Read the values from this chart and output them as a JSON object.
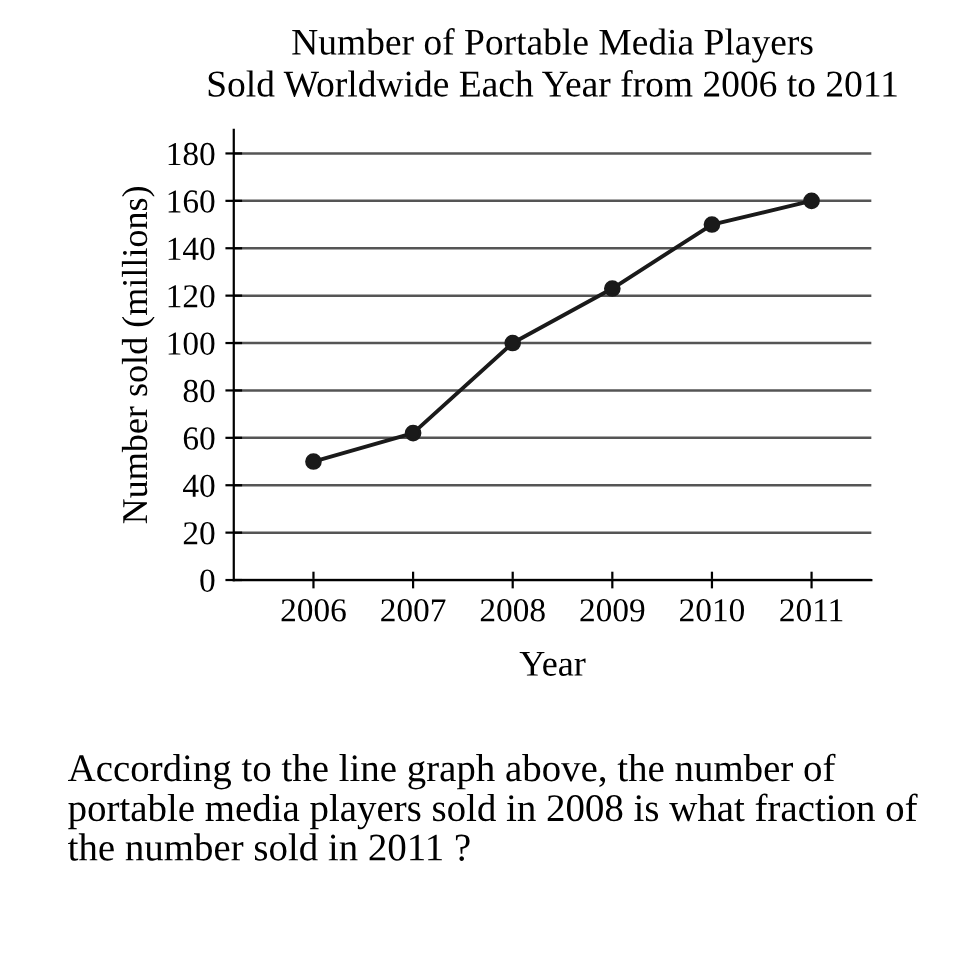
{
  "chart_data": {
    "type": "line",
    "title": "Number of Portable Media Players\nSold Worldwide Each Year from 2006 to 2011",
    "xlabel": "Year",
    "ylabel": "Number sold (millions)",
    "categories": [
      "2006",
      "2007",
      "2008",
      "2009",
      "2010",
      "2011"
    ],
    "series": [
      {
        "color": "#1a1a1a",
        "values": [
          50,
          62,
          100,
          123,
          150,
          160
        ]
      }
    ],
    "ylim": [
      0,
      190
    ],
    "yticks": [
      0,
      20,
      40,
      60,
      80,
      100,
      120,
      140,
      160,
      180
    ],
    "grid": "y",
    "marker": "circle",
    "line_style": "solid",
    "legend": false,
    "annotations": [
      "According to the line graph above, the number of portable media players sold in 2008 is what fraction of the number sold in 2011 ?"
    ]
  }
}
